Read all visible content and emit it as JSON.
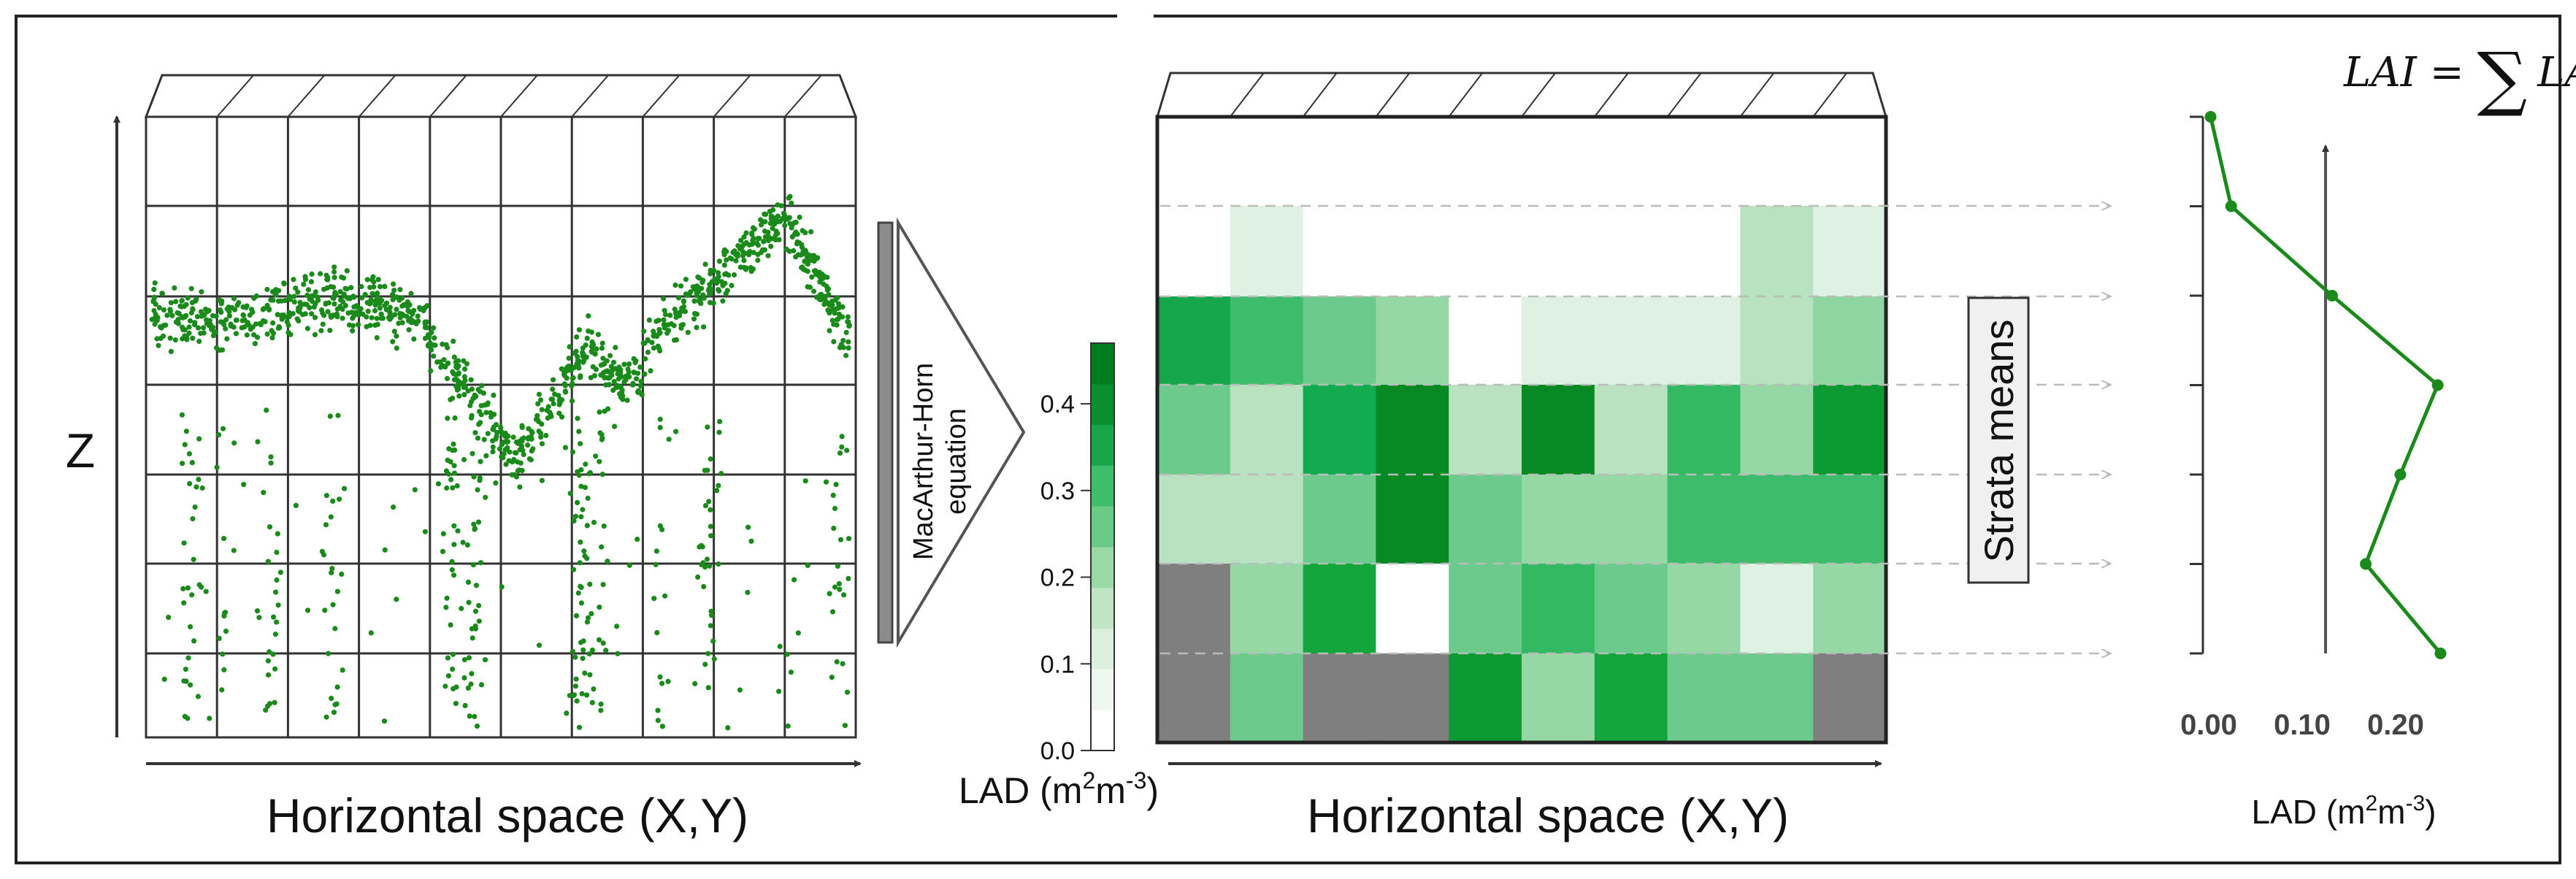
{
  "left_panel": {
    "z_label": "Z",
    "x_label": "Horizontal space (X,Y)",
    "grid_cols": 10,
    "grid_rows": 6,
    "point_color": "#1a8a1a"
  },
  "arrow": {
    "label_line1": "MacArthur-Horn",
    "label_line2": "equation"
  },
  "colorbar": {
    "ticks": [
      "0.0",
      "0.1",
      "0.2",
      "0.3",
      "0.4"
    ],
    "title_main": "LAD (m",
    "title_sup1": "2",
    "title_mid": "m",
    "title_sup2": "-3",
    "title_end": ")",
    "steps": [
      "#ffffff",
      "#eef8ef",
      "#daf0dd",
      "#bfe5c4",
      "#99d9a4",
      "#6acb86",
      "#3fbd6a",
      "#1aa648",
      "#0a8f2e",
      "#007e1f"
    ]
  },
  "middle_panel": {
    "x_label": "Horizontal space (X,Y)",
    "missing_color": "#7f7f7f",
    "grid": [
      [
        "w",
        "w",
        "w",
        "w",
        "w",
        "w",
        "w",
        "w",
        "w",
        "w"
      ],
      [
        "w",
        "#dff1e3",
        "w",
        "w",
        "w",
        "w",
        "w",
        "w",
        "#b9e2c1",
        "#dff1e3"
      ],
      [
        "#16a64c",
        "#3dbc6b",
        "#6ccb8c",
        "#96d7a6",
        "w",
        "#dff1e3",
        "#dff1e3",
        "#dff1e3",
        "#b9e2c1",
        "#8fd5a2"
      ],
      [
        "#6ccb8c",
        "#b9e2c1",
        "#12ab4f",
        "#078a23",
        "#b9e2c1",
        "#078a23",
        "#b9e2c1",
        "#34b963",
        "#96d7a6",
        "#0c9a33"
      ],
      [
        "#b9e2c1",
        "#b9e2c1",
        "#6ccb8c",
        "#078a23",
        "#6ccb8c",
        "#96d7a6",
        "#96d7a6",
        "#3dbc6b",
        "#3dbc6b",
        "#3dbc6b"
      ],
      [
        "gray",
        "#96d7a6",
        "#12a63d",
        "w",
        "#6ccb8c",
        "#34b963",
        "#6ccb8c",
        "#96d7a6",
        "#dff1e3",
        "#96d7a6"
      ],
      [
        "gray",
        "#6ccb8c",
        "gray",
        "gray",
        "#0c9a33",
        "#96d7a6",
        "#12a63d",
        "#6ccb8c",
        "#6ccb8c",
        "gray"
      ]
    ],
    "strata_label": "Strata means"
  },
  "right_panel": {
    "formula_lhs": "LAI",
    "formula_eq": "=",
    "formula_sum": "∑",
    "formula_rhs": "LAD",
    "x_ticks": [
      "0.00",
      "0.10",
      "0.20"
    ],
    "x_title_main": "LAD (m",
    "x_title_sup1": "2",
    "x_title_mid": "m",
    "x_title_sup2": "-3",
    "x_title_end": ")",
    "line_color": "#1a8a1a"
  },
  "chart_data": {
    "type": "line",
    "title": "LAI = ∑ LAD",
    "xlabel": "LAD (m2m-3)",
    "ylabel": "Strata",
    "xlim": [
      0.0,
      0.25
    ],
    "x_ticks": [
      0.0,
      0.1,
      0.2
    ],
    "y_levels": [
      0,
      1,
      2,
      3,
      4,
      5,
      6
    ],
    "series": [
      {
        "name": "Strata means",
        "x": [
          0.248,
          0.168,
          0.205,
          0.245,
          0.132,
          0.024,
          0.002
        ],
        "y": [
          0,
          1,
          2,
          3,
          4,
          5,
          6
        ]
      }
    ],
    "mean_line_x": 0.125
  }
}
